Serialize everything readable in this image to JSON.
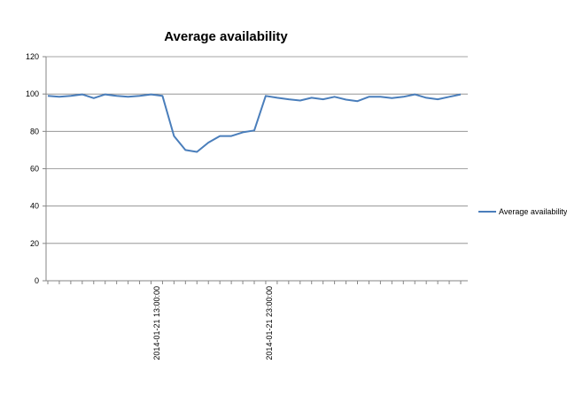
{
  "chart_data": {
    "type": "line",
    "title": "Average availability",
    "xlabel": "",
    "ylabel": "",
    "ylim": [
      0,
      120
    ],
    "yticks": [
      "0",
      "20",
      "40",
      "60",
      "80",
      "100",
      "120"
    ],
    "grid": true,
    "legend": "right",
    "x_tick_labels": [
      "2014-01-21 13:00:00",
      "2014-01-21 23:00:00"
    ],
    "series": [
      {
        "name": "Average availability",
        "color": "#4a7ebb",
        "values": [
          99,
          98.5,
          99,
          99.8,
          97.8,
          99.8,
          99,
          98.5,
          99,
          99.8,
          99,
          77.5,
          70,
          69,
          74,
          77.5,
          77.5,
          79.5,
          80.5,
          99,
          98,
          97.2,
          96.5,
          98,
          97.2,
          98.5,
          97,
          96.2,
          98.5,
          98.5,
          97.8,
          98.5,
          99.8,
          98,
          97.2,
          98.5,
          99.8
        ]
      }
    ]
  }
}
